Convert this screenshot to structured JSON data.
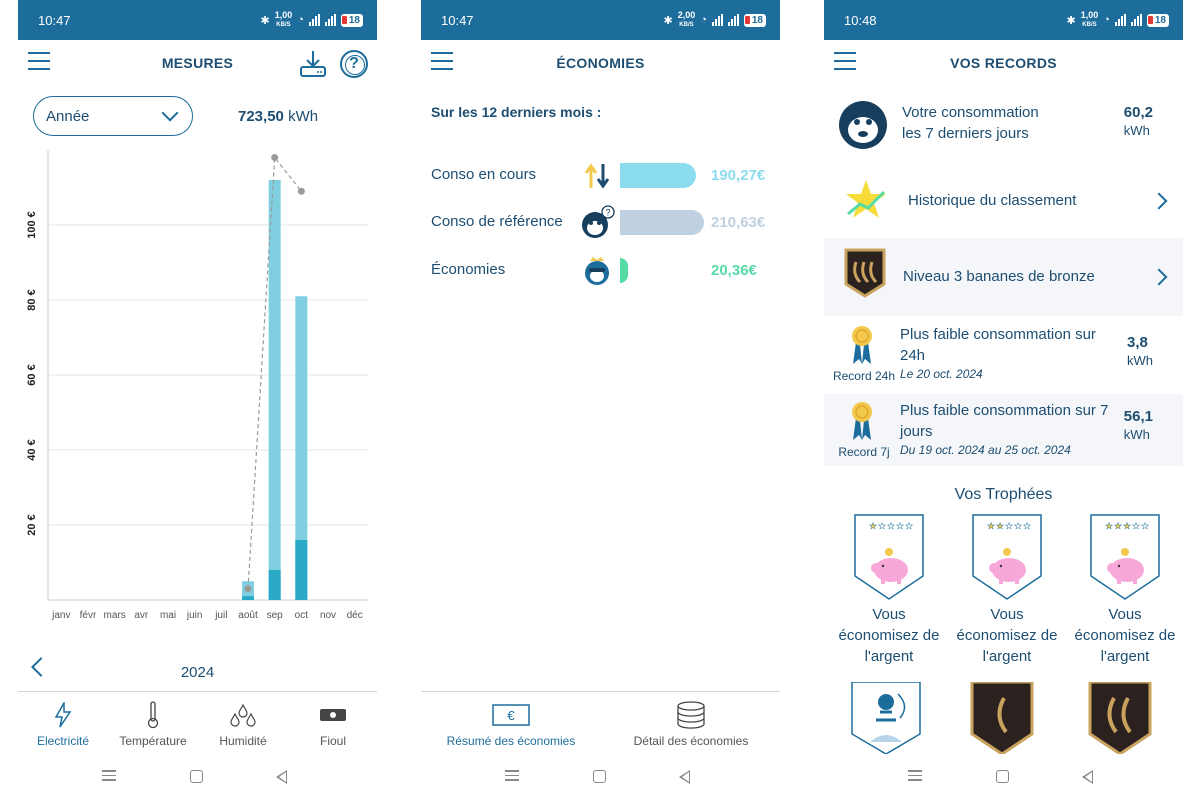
{
  "status": [
    {
      "time": "10:47",
      "net": "1,00",
      "netunit": "KB/S",
      "battery": "18"
    },
    {
      "time": "10:47",
      "net": "2,00",
      "netunit": "KB/S",
      "battery": "18"
    },
    {
      "time": "10:48",
      "net": "1,00",
      "netunit": "KB/S",
      "battery": "18"
    }
  ],
  "mesures": {
    "title": "MESURES",
    "period": "Année",
    "total_value": "723,50",
    "total_unit": "kWh",
    "year": "2024",
    "tabs": [
      "Electricité",
      "Température",
      "Humidité",
      "Fioul"
    ]
  },
  "chart_data": {
    "type": "bar",
    "categories": [
      "janv",
      "févr",
      "mars",
      "avr",
      "mai",
      "juin",
      "juil",
      "août",
      "sep",
      "oct",
      "nov",
      "déc"
    ],
    "series": [
      {
        "values": [
          0,
          0,
          0,
          0,
          0,
          0,
          0,
          5,
          112,
          81,
          0,
          0
        ]
      },
      {
        "values": [
          0,
          0,
          0,
          0,
          0,
          0,
          0,
          1,
          8,
          16,
          0,
          0
        ]
      }
    ],
    "reference_line": [
      null,
      null,
      null,
      null,
      null,
      null,
      null,
      3,
      118,
      109,
      null,
      null
    ],
    "ytick_labels": [
      "20 €",
      "40 €",
      "60 €",
      "80 €",
      "100 €"
    ],
    "yticks": [
      20,
      40,
      60,
      80,
      100
    ],
    "ylim": [
      0,
      120
    ],
    "colors": {
      "total": "#7fcfe0",
      "base": "#29a9c6",
      "line": "#9a9a9a"
    }
  },
  "economies": {
    "title": "ÉCONOMIES",
    "subtitle": "Sur les 12 derniers mois :",
    "rows": [
      {
        "label": "Conso en cours",
        "amount": "190,27€",
        "value": 190.27,
        "color": "#8cdcf0"
      },
      {
        "label": "Conso de référence",
        "amount": "210,63€",
        "value": 210.63,
        "color": "#bfd0e0"
      },
      {
        "label": "Économies",
        "amount": "20,36€",
        "value": 20.36,
        "color": "#56dba7"
      }
    ],
    "tabs": [
      "Résumé des économies",
      "Détail des économies"
    ]
  },
  "records": {
    "title": "VOS RECORDS",
    "weekly": {
      "line1": "Votre consommation",
      "line2": "les 7 derniers jours",
      "value": "60,2",
      "unit": "kWh"
    },
    "classement": "Historique du classement",
    "niveau": "Niveau 3 bananes de bronze",
    "r24": {
      "line1": "Plus faible consommation sur",
      "line2": "24h",
      "tag": "Record 24h",
      "date": "Le 20 oct. 2024",
      "value": "3,8",
      "unit": "kWh"
    },
    "r7": {
      "line1": "Plus faible consommation sur 7",
      "line2": "jours",
      "tag": "Record 7j",
      "date": "Du 19 oct. 2024 au 25 oct. 2024",
      "value": "56,1",
      "unit": "kWh"
    },
    "trophies_title": "Vos Trophées",
    "trophies": [
      {
        "l1": "Vous",
        "l2": "économisez de",
        "l3": "l'argent",
        "stars": 1
      },
      {
        "l1": "Vous",
        "l2": "économisez de",
        "l3": "l'argent",
        "stars": 2
      },
      {
        "l1": "Vous",
        "l2": "économisez de",
        "l3": "l'argent",
        "stars": 3
      }
    ]
  }
}
